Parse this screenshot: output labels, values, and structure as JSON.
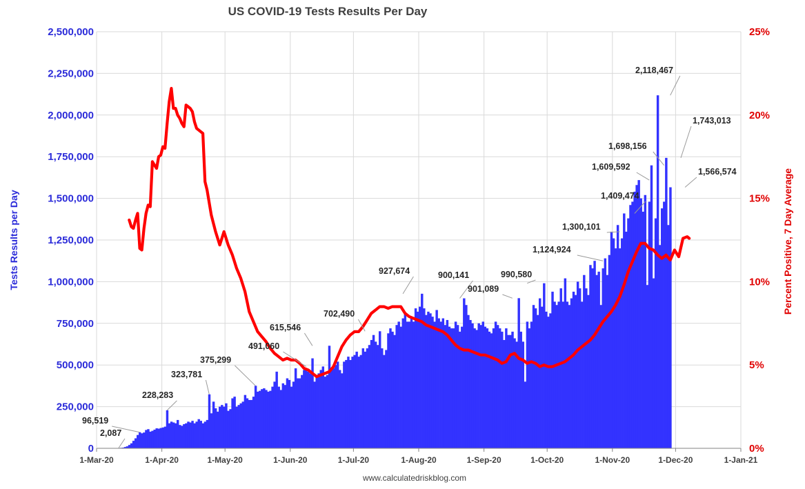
{
  "chart_data": {
    "type": "bar",
    "title": "US COVID-19 Tests Results Per Day",
    "ylabel": "Tests Results per Day",
    "y2label": "Percent Positive, 7 Day Average",
    "source": "www.calculatedriskblog.com",
    "ylim": [
      0,
      2500000
    ],
    "y2lim": [
      0,
      25
    ],
    "yticks": [
      "0",
      "250,000",
      "500,000",
      "750,000",
      "1,000,000",
      "1,250,000",
      "1,500,000",
      "1,750,000",
      "2,000,000",
      "2,250,000",
      "2,500,000"
    ],
    "y2ticks": [
      "0%",
      "5%",
      "10%",
      "15%",
      "20%",
      "25%"
    ],
    "xticks": [
      "1-Mar-20",
      "1-Apr-20",
      "1-May-20",
      "1-Jun-20",
      "1-Jul-20",
      "1-Aug-20",
      "1-Sep-20",
      "1-Oct-20",
      "1-Nov-20",
      "1-Dec-20",
      "1-Jan-21"
    ],
    "colors": {
      "bars": "#3333FF",
      "line": "#FF0000",
      "left_axis": "#2B2BD9",
      "right_axis": "#E00000"
    },
    "grid": true,
    "legend": "none",
    "bars_series": {
      "name": "Tests Results per Day",
      "start_date": "2020-03-01",
      "values": [
        0,
        0,
        0,
        0,
        0,
        0,
        0,
        0,
        0,
        0,
        2087,
        2900,
        4000,
        8000,
        12000,
        20000,
        30000,
        45000,
        60000,
        80000,
        96519,
        90000,
        95000,
        110000,
        115000,
        100000,
        105000,
        112000,
        120000,
        118000,
        122000,
        125000,
        130000,
        228283,
        150000,
        160000,
        155000,
        150000,
        170000,
        140000,
        135000,
        145000,
        150000,
        160000,
        155000,
        165000,
        150000,
        160000,
        175000,
        165000,
        150000,
        160000,
        170000,
        323781,
        210000,
        280000,
        240000,
        220000,
        250000,
        260000,
        250000,
        270000,
        225000,
        235000,
        300000,
        310000,
        250000,
        260000,
        270000,
        280000,
        320000,
        300000,
        290000,
        290000,
        310000,
        375299,
        340000,
        345000,
        355000,
        360000,
        350000,
        340000,
        345000,
        370000,
        400000,
        460000,
        370000,
        350000,
        390000,
        380000,
        420000,
        410000,
        370000,
        400000,
        480000,
        420000,
        420000,
        440000,
        470000,
        480000,
        460000,
        450000,
        540000,
        400000,
        430000,
        450000,
        470000,
        491060,
        430000,
        440000,
        615546,
        470000,
        480000,
        500000,
        520000,
        470000,
        450000,
        520000,
        530000,
        550000,
        530000,
        550000,
        560000,
        580000,
        550000,
        560000,
        600000,
        580000,
        600000,
        620000,
        650000,
        680000,
        640000,
        620000,
        702490,
        600000,
        560000,
        590000,
        690000,
        720000,
        700000,
        680000,
        740000,
        760000,
        730000,
        780000,
        810000,
        760000,
        760000,
        790000,
        760000,
        840000,
        820000,
        850000,
        927674,
        840000,
        800000,
        820000,
        810000,
        790000,
        760000,
        830000,
        780000,
        760000,
        780000,
        740000,
        770000,
        730000,
        720000,
        720000,
        760000,
        740000,
        700000,
        730000,
        900141,
        860000,
        800000,
        770000,
        750000,
        720000,
        710000,
        750000,
        740000,
        760000,
        730000,
        720000,
        700000,
        690000,
        720000,
        760000,
        740000,
        720000,
        700000,
        650000,
        720000,
        680000,
        680000,
        700000,
        660000,
        640000,
        901089,
        700000,
        640000,
        400000,
        760000,
        720000,
        760000,
        860000,
        840000,
        800000,
        900000,
        850000,
        990580,
        820000,
        790000,
        810000,
        940000,
        880000,
        860000,
        880000,
        960000,
        880000,
        1020000,
        880000,
        860000,
        900000,
        940000,
        920000,
        1000000,
        960000,
        880000,
        1040000,
        960000,
        920000,
        1100000,
        1080000,
        1124924,
        1040000,
        1060000,
        860000,
        1080000,
        1140000,
        1040000,
        1160000,
        1300101,
        1260000,
        1200000,
        1340000,
        1200000,
        1260000,
        1409474,
        1300000,
        1380000,
        1460000,
        1480000,
        1540000,
        1580000,
        1609592,
        1500000,
        1420000,
        1520000,
        980000,
        1480000,
        1698156,
        1020000,
        1380000,
        2118467,
        1220000,
        1440000,
        1480000,
        1743013,
        1340000,
        1566574
      ]
    },
    "line_series": {
      "name": "Percent Positive, 7 Day Average",
      "points": [
        [
          "2020-03-16",
          13.7
        ],
        [
          "2020-03-17",
          13.3
        ],
        [
          "2020-03-18",
          13.2
        ],
        [
          "2020-03-19",
          13.7
        ],
        [
          "2020-03-20",
          14.1
        ],
        [
          "2020-03-21",
          12.0
        ],
        [
          "2020-03-22",
          11.9
        ],
        [
          "2020-03-23",
          13.2
        ],
        [
          "2020-03-24",
          14.1
        ],
        [
          "2020-03-25",
          14.6
        ],
        [
          "2020-03-26",
          14.5
        ],
        [
          "2020-03-27",
          17.2
        ],
        [
          "2020-03-28",
          17.0
        ],
        [
          "2020-03-29",
          16.8
        ],
        [
          "2020-03-30",
          17.5
        ],
        [
          "2020-03-31",
          17.6
        ],
        [
          "2020-04-01",
          18.1
        ],
        [
          "2020-04-02",
          18.0
        ],
        [
          "2020-04-03",
          19.5
        ],
        [
          "2020-04-04",
          20.8
        ],
        [
          "2020-04-05",
          21.6
        ],
        [
          "2020-04-06",
          20.4
        ],
        [
          "2020-04-07",
          20.4
        ],
        [
          "2020-04-08",
          20.0
        ],
        [
          "2020-04-09",
          19.8
        ],
        [
          "2020-04-10",
          19.5
        ],
        [
          "2020-04-11",
          19.3
        ],
        [
          "2020-04-12",
          20.6
        ],
        [
          "2020-04-13",
          20.5
        ],
        [
          "2020-04-14",
          20.4
        ],
        [
          "2020-04-15",
          20.2
        ],
        [
          "2020-04-16",
          19.6
        ],
        [
          "2020-04-17",
          19.2
        ],
        [
          "2020-04-18",
          19.1
        ],
        [
          "2020-04-19",
          19.0
        ],
        [
          "2020-04-20",
          18.9
        ],
        [
          "2020-04-21",
          16.0
        ],
        [
          "2020-04-22",
          15.5
        ],
        [
          "2020-04-24",
          14.0
        ],
        [
          "2020-04-26",
          13.0
        ],
        [
          "2020-04-28",
          12.2
        ],
        [
          "2020-04-30",
          13.0
        ],
        [
          "2020-05-02",
          12.2
        ],
        [
          "2020-05-04",
          11.6
        ],
        [
          "2020-05-06",
          10.8
        ],
        [
          "2020-05-08",
          10.2
        ],
        [
          "2020-05-10",
          9.4
        ],
        [
          "2020-05-12",
          8.2
        ],
        [
          "2020-05-14",
          7.6
        ],
        [
          "2020-05-16",
          7.0
        ],
        [
          "2020-05-18",
          6.7
        ],
        [
          "2020-05-20",
          6.4
        ],
        [
          "2020-05-22",
          6.0
        ],
        [
          "2020-05-24",
          5.7
        ],
        [
          "2020-05-26",
          5.5
        ],
        [
          "2020-05-28",
          5.3
        ],
        [
          "2020-05-30",
          5.4
        ],
        [
          "2020-06-01",
          5.3
        ],
        [
          "2020-06-03",
          5.3
        ],
        [
          "2020-06-05",
          5.1
        ],
        [
          "2020-06-07",
          4.8
        ],
        [
          "2020-06-09",
          4.7
        ],
        [
          "2020-06-11",
          4.5
        ],
        [
          "2020-06-13",
          4.3
        ],
        [
          "2020-06-15",
          4.4
        ],
        [
          "2020-06-17",
          4.5
        ],
        [
          "2020-06-19",
          4.6
        ],
        [
          "2020-06-21",
          4.9
        ],
        [
          "2020-06-23",
          5.5
        ],
        [
          "2020-06-25",
          6.1
        ],
        [
          "2020-06-27",
          6.5
        ],
        [
          "2020-06-29",
          6.8
        ],
        [
          "2020-07-01",
          7.0
        ],
        [
          "2020-07-03",
          7.0
        ],
        [
          "2020-07-05",
          7.3
        ],
        [
          "2020-07-07",
          7.7
        ],
        [
          "2020-07-09",
          8.1
        ],
        [
          "2020-07-11",
          8.3
        ],
        [
          "2020-07-13",
          8.5
        ],
        [
          "2020-07-15",
          8.5
        ],
        [
          "2020-07-17",
          8.4
        ],
        [
          "2020-07-19",
          8.5
        ],
        [
          "2020-07-21",
          8.5
        ],
        [
          "2020-07-23",
          8.5
        ],
        [
          "2020-07-25",
          8.1
        ],
        [
          "2020-07-27",
          7.9
        ],
        [
          "2020-07-29",
          7.8
        ],
        [
          "2020-07-31",
          7.7
        ],
        [
          "2020-08-02",
          7.6
        ],
        [
          "2020-08-04",
          7.4
        ],
        [
          "2020-08-06",
          7.3
        ],
        [
          "2020-08-08",
          7.2
        ],
        [
          "2020-08-10",
          7.1
        ],
        [
          "2020-08-12",
          7.0
        ],
        [
          "2020-08-14",
          6.8
        ],
        [
          "2020-08-16",
          6.5
        ],
        [
          "2020-08-18",
          6.2
        ],
        [
          "2020-08-20",
          6.0
        ],
        [
          "2020-08-22",
          5.9
        ],
        [
          "2020-08-24",
          5.9
        ],
        [
          "2020-08-26",
          5.8
        ],
        [
          "2020-08-28",
          5.7
        ],
        [
          "2020-08-30",
          5.6
        ],
        [
          "2020-09-01",
          5.6
        ],
        [
          "2020-09-03",
          5.5
        ],
        [
          "2020-09-05",
          5.4
        ],
        [
          "2020-09-07",
          5.3
        ],
        [
          "2020-09-09",
          5.1
        ],
        [
          "2020-09-11",
          5.2
        ],
        [
          "2020-09-13",
          5.6
        ],
        [
          "2020-09-15",
          5.7
        ],
        [
          "2020-09-17",
          5.4
        ],
        [
          "2020-09-19",
          5.3
        ],
        [
          "2020-09-21",
          5.1
        ],
        [
          "2020-09-23",
          5.2
        ],
        [
          "2020-09-25",
          5.1
        ],
        [
          "2020-09-27",
          4.9
        ],
        [
          "2020-09-29",
          5.0
        ],
        [
          "2020-10-01",
          4.9
        ],
        [
          "2020-10-03",
          4.9
        ],
        [
          "2020-10-05",
          5.0
        ],
        [
          "2020-10-07",
          5.1
        ],
        [
          "2020-10-09",
          5.2
        ],
        [
          "2020-10-11",
          5.4
        ],
        [
          "2020-10-13",
          5.6
        ],
        [
          "2020-10-15",
          5.9
        ],
        [
          "2020-10-17",
          6.1
        ],
        [
          "2020-10-19",
          6.3
        ],
        [
          "2020-10-21",
          6.5
        ],
        [
          "2020-10-23",
          6.8
        ],
        [
          "2020-10-25",
          7.2
        ],
        [
          "2020-10-27",
          7.6
        ],
        [
          "2020-10-29",
          7.9
        ],
        [
          "2020-10-31",
          8.2
        ],
        [
          "2020-11-02",
          8.6
        ],
        [
          "2020-11-04",
          9.1
        ],
        [
          "2020-11-06",
          9.8
        ],
        [
          "2020-11-08",
          10.6
        ],
        [
          "2020-11-10",
          11.2
        ],
        [
          "2020-11-12",
          11.8
        ],
        [
          "2020-11-14",
          12.3
        ],
        [
          "2020-11-16",
          12.3
        ],
        [
          "2020-11-18",
          12.0
        ],
        [
          "2020-11-20",
          11.9
        ],
        [
          "2020-11-22",
          11.6
        ],
        [
          "2020-11-24",
          11.4
        ],
        [
          "2020-11-26",
          11.6
        ],
        [
          "2020-11-28",
          11.3
        ],
        [
          "2020-11-30",
          11.9
        ],
        [
          "2020-12-02",
          11.5
        ],
        [
          "2020-12-04",
          12.6
        ],
        [
          "2020-12-06",
          12.7
        ],
        [
          "2020-12-07",
          12.6
        ]
      ]
    },
    "annotations": [
      {
        "label": "2,087",
        "date": "2020-03-11",
        "value": 2087
      },
      {
        "label": "96,519",
        "date": "2020-03-21",
        "value": 96519
      },
      {
        "label": "228,283",
        "date": "2020-04-03",
        "value": 228283
      },
      {
        "label": "323,781",
        "date": "2020-04-23",
        "value": 323781
      },
      {
        "label": "375,299",
        "date": "2020-05-15",
        "value": 375299
      },
      {
        "label": "491,060",
        "date": "2020-06-08",
        "value": 491060
      },
      {
        "label": "615,546",
        "date": "2020-06-11",
        "value": 615546
      },
      {
        "label": "702,490",
        "date": "2020-07-06",
        "value": 702490
      },
      {
        "label": "927,674",
        "date": "2020-07-24",
        "value": 927674
      },
      {
        "label": "900,141",
        "date": "2020-08-20",
        "value": 900141
      },
      {
        "label": "901,089",
        "date": "2020-09-14",
        "value": 901089
      },
      {
        "label": "990,580",
        "date": "2020-09-21",
        "value": 990580
      },
      {
        "label": "1,124,924",
        "date": "2020-10-27",
        "value": 1124924
      },
      {
        "label": "1,300,101",
        "date": "2020-11-04",
        "value": 1300101
      },
      {
        "label": "1,409,474",
        "date": "2020-11-11",
        "value": 1409474
      },
      {
        "label": "1,609,592",
        "date": "2020-11-18",
        "value": 1609592
      },
      {
        "label": "1,698,156",
        "date": "2020-11-25",
        "value": 1698156
      },
      {
        "label": "2,118,467",
        "date": "2020-11-28",
        "value": 2118467
      },
      {
        "label": "1,743,013",
        "date": "2020-12-03",
        "value": 1743013
      },
      {
        "label": "1,566,574",
        "date": "2020-12-05",
        "value": 1566574
      }
    ]
  }
}
